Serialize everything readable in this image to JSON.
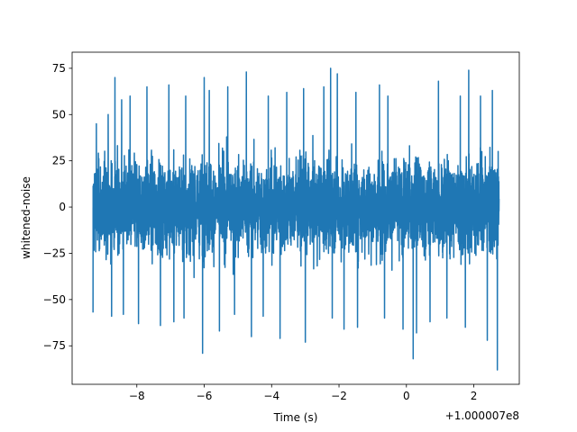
{
  "chart_data": {
    "type": "line",
    "xlabel": "Time (s)",
    "ylabel": "whitened-noise",
    "x_offset_label": "+1.000007e8",
    "xlim": [
      -9.92,
      3.35
    ],
    "ylim": [
      -95.8,
      83.7
    ],
    "x_ticks": [
      -8,
      -6,
      -4,
      -2,
      0,
      2
    ],
    "x_tick_labels": [
      "−8",
      "−6",
      "−4",
      "−2",
      "0",
      "2"
    ],
    "y_ticks": [
      -75,
      -50,
      -25,
      0,
      25,
      50,
      75
    ],
    "y_tick_labels": [
      "−75",
      "−50",
      "−25",
      "0",
      "25",
      "50",
      "75"
    ],
    "grid": false,
    "color": "#1f77b4",
    "series": [
      {
        "x_range": [
          -9.3,
          2.75
        ],
        "typical_envelope": [
          -40,
          43
        ],
        "peaks_max": [
          [
            -9.2,
            45
          ],
          [
            -8.85,
            50
          ],
          [
            -8.65,
            70
          ],
          [
            -8.45,
            58
          ],
          [
            -8.2,
            60
          ],
          [
            -7.7,
            65
          ],
          [
            -7.05,
            66
          ],
          [
            -6.55,
            60
          ],
          [
            -6.0,
            70
          ],
          [
            -5.85,
            63
          ],
          [
            -5.3,
            65
          ],
          [
            -4.75,
            73
          ],
          [
            -4.1,
            60
          ],
          [
            -3.55,
            62
          ],
          [
            -3.05,
            64
          ],
          [
            -2.45,
            65
          ],
          [
            -2.25,
            75
          ],
          [
            -2.05,
            72
          ],
          [
            -1.5,
            62
          ],
          [
            -0.8,
            66
          ],
          [
            -0.55,
            60
          ],
          [
            0.2,
            66
          ],
          [
            0.95,
            68
          ],
          [
            1.6,
            60
          ],
          [
            1.85,
            74
          ],
          [
            2.2,
            60
          ],
          [
            2.55,
            63
          ]
        ],
        "peaks_min": [
          [
            -9.3,
            -57
          ],
          [
            -8.75,
            -59
          ],
          [
            -8.4,
            -58
          ],
          [
            -7.95,
            -63
          ],
          [
            -7.3,
            -64
          ],
          [
            -6.9,
            -62
          ],
          [
            -6.6,
            -60
          ],
          [
            -6.05,
            -79
          ],
          [
            -5.55,
            -67
          ],
          [
            -5.1,
            -58
          ],
          [
            -4.6,
            -70
          ],
          [
            -4.25,
            -59
          ],
          [
            -3.75,
            -71
          ],
          [
            -3.0,
            -73
          ],
          [
            -2.2,
            -60
          ],
          [
            -1.85,
            -66
          ],
          [
            -1.45,
            -65
          ],
          [
            -0.65,
            -60
          ],
          [
            -0.1,
            -66
          ],
          [
            0.2,
            -82
          ],
          [
            0.3,
            -68
          ],
          [
            0.7,
            -62
          ],
          [
            1.2,
            -60
          ],
          [
            1.75,
            -65
          ],
          [
            2.4,
            -72
          ],
          [
            2.7,
            -88
          ]
        ]
      }
    ]
  }
}
